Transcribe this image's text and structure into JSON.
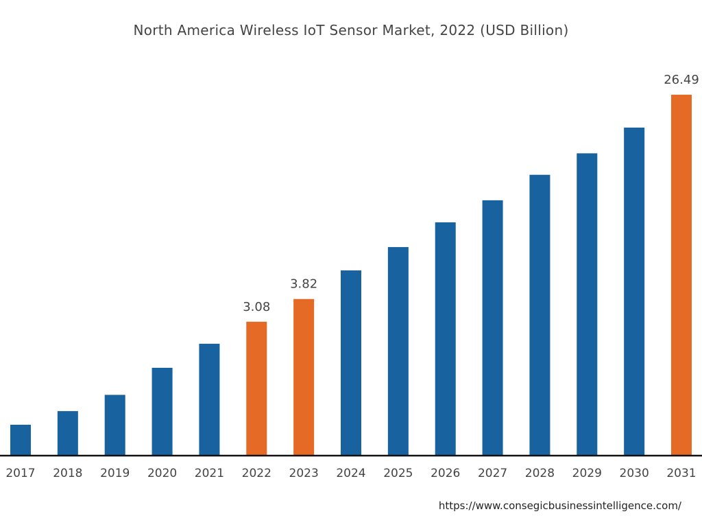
{
  "chart_data": {
    "type": "bar",
    "title": "North America Wireless IoT Sensor Market, 2022 (USD Billion)",
    "xlabel": "",
    "ylabel": "",
    "categories": [
      "2017",
      "2018",
      "2019",
      "2020",
      "2021",
      "2022",
      "2023",
      "2024",
      "2025",
      "2026",
      "2027",
      "2028",
      "2029",
      "2030",
      "2031"
    ],
    "values": [
      1.16,
      1.32,
      1.54,
      1.99,
      2.5,
      3.08,
      3.82,
      5.01,
      6.25,
      7.9,
      9.74,
      12.4,
      15.2,
      19.4,
      26.49
    ],
    "data_labels": {
      "2022": "3.08",
      "2023": "3.82",
      "2031": "26.49"
    },
    "highlight_categories": [
      "2022",
      "2023",
      "2031"
    ],
    "yscale": "nonlinear (estimated, axis not shown)",
    "y_axis_visible": false,
    "grid": false,
    "legend": "none",
    "colors": {
      "default": "#17629F",
      "highlight": "#E46A25",
      "baseline": "#111111"
    }
  },
  "source": "https://www.consegicbusinessintelligence.com/"
}
